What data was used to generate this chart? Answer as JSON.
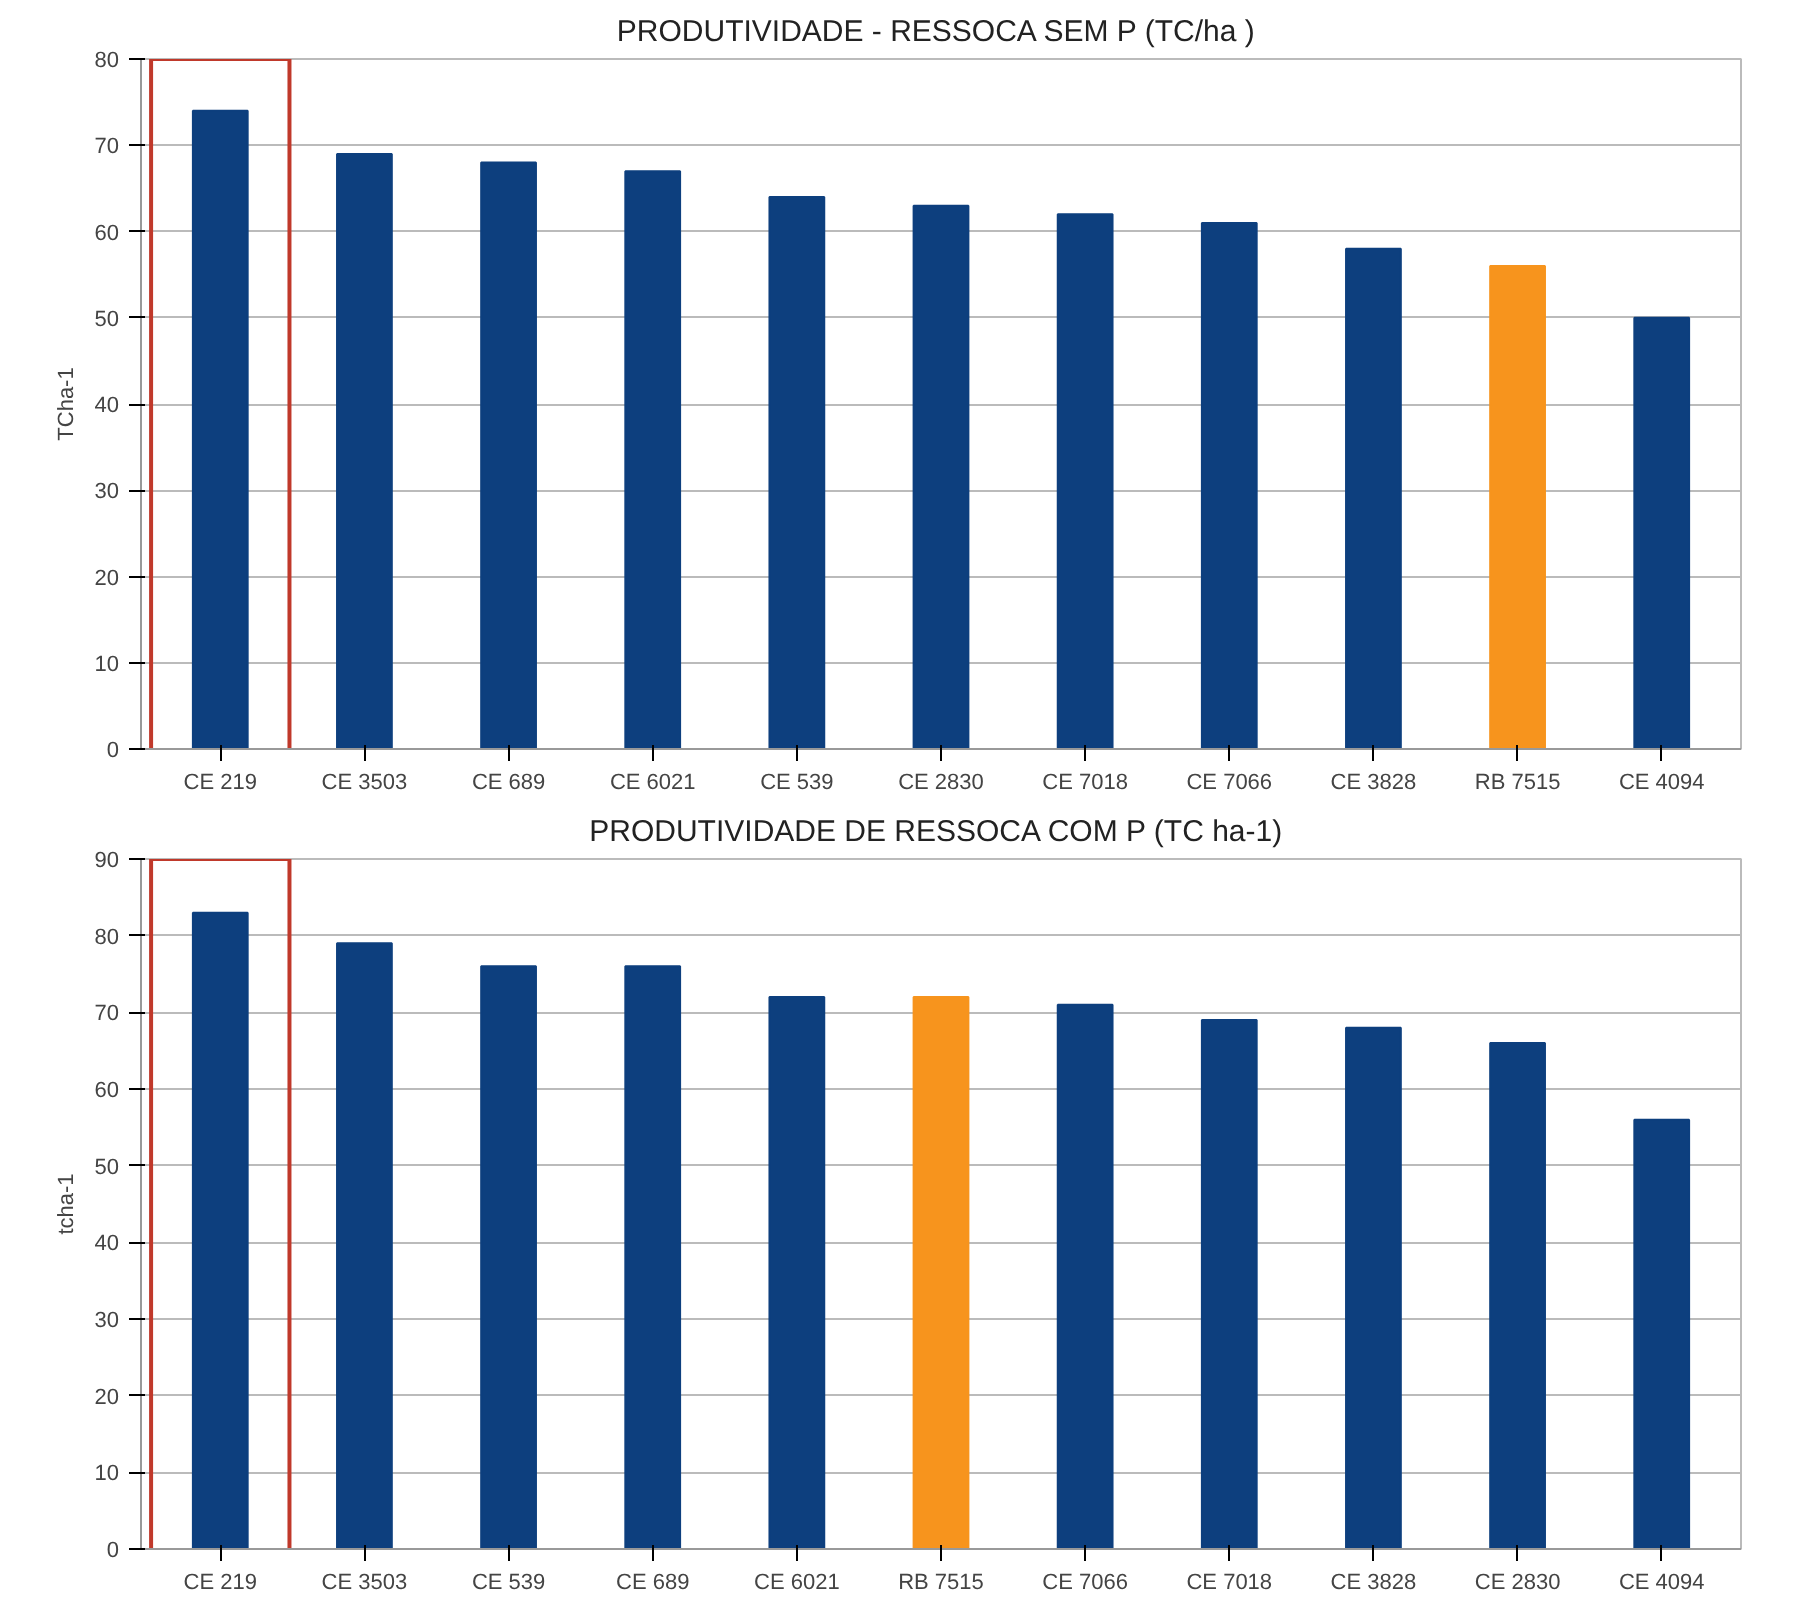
{
  "chart_data": [
    {
      "type": "bar",
      "title": "PRODUTIVIDADE - RESSOCA  SEM P (TC/ha )",
      "ylabel": "TCha-1",
      "categories": [
        "CE 219",
        "CE 3503",
        "CE 689",
        "CE 6021",
        "CE 539",
        "CE 2830",
        "CE 7018",
        "CE 7066",
        "CE 3828",
        "RB 7515",
        "CE 4094"
      ],
      "values": [
        74,
        69,
        68,
        67,
        64,
        63,
        62,
        61,
        58,
        56,
        50
      ],
      "colors": [
        "#0d3f7e",
        "#0d3f7e",
        "#0d3f7e",
        "#0d3f7e",
        "#0d3f7e",
        "#0d3f7e",
        "#0d3f7e",
        "#0d3f7e",
        "#0d3f7e",
        "#f7941d",
        "#0d3f7e"
      ],
      "ylim": [
        0,
        80
      ],
      "yticks": [
        0,
        10,
        20,
        30,
        40,
        50,
        60,
        70,
        80
      ],
      "grid": "y"
    },
    {
      "type": "bar",
      "title": "PRODUTIVIDADE DE RESSOCA  COM P (TC ha-1)",
      "ylabel": "tcha-1",
      "categories": [
        "CE 219",
        "CE 3503",
        "CE 539",
        "CE 689",
        "CE 6021",
        "RB 7515",
        "CE 7066",
        "CE 7018",
        "CE 3828",
        "CE 2830",
        "CE 4094"
      ],
      "values": [
        83,
        79,
        76,
        76,
        72,
        72,
        71,
        69,
        68,
        66,
        56
      ],
      "colors": [
        "#0d3f7e",
        "#0d3f7e",
        "#0d3f7e",
        "#0d3f7e",
        "#0d3f7e",
        "#f7941d",
        "#0d3f7e",
        "#0d3f7e",
        "#0d3f7e",
        "#0d3f7e",
        "#0d3f7e"
      ],
      "ylim": [
        0,
        90
      ],
      "yticks": [
        0,
        10,
        20,
        30,
        40,
        50,
        60,
        70,
        80,
        90
      ],
      "grid": "y"
    }
  ]
}
